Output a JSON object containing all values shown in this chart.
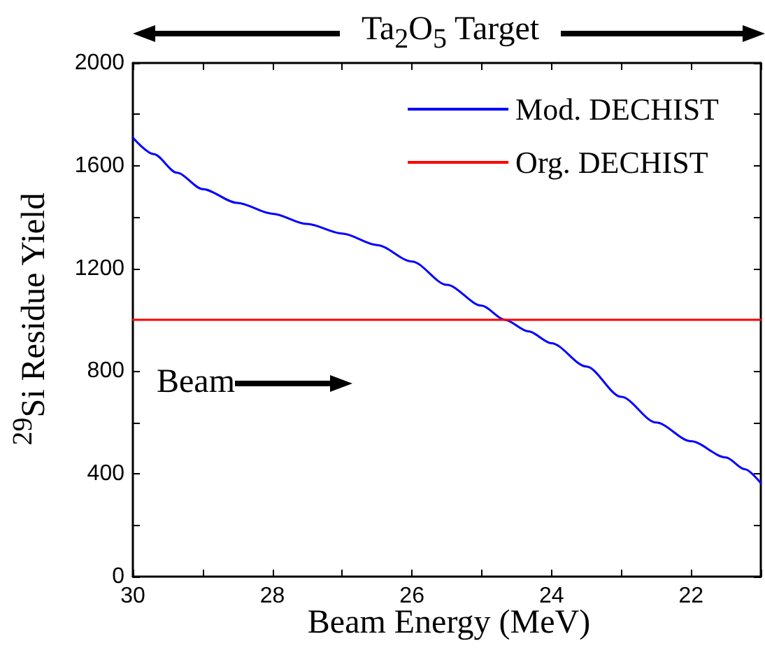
{
  "chart_data": {
    "type": "line",
    "title": "Ta$_{2}$O$_{5}$ Target",
    "xlabel": "Beam Energy (MeV)",
    "ylabel": "$^{29}$Si Residue Yield",
    "xlim": [
      30,
      21
    ],
    "ylim": [
      0,
      2000
    ],
    "xticks": [
      30,
      {
        "value": 29,
        "label": null
      },
      28,
      {
        "value": 27,
        "label": null
      },
      26,
      {
        "value": 25,
        "label": null
      },
      24,
      {
        "value": 23,
        "label": null
      },
      22,
      {
        "value": 21,
        "label": null
      }
    ],
    "yticks": [
      0,
      {
        "value": 200,
        "label": null
      },
      400,
      {
        "value": 600,
        "label": null
      },
      800,
      {
        "value": 1000,
        "label": null
      },
      1200,
      {
        "value": 1400,
        "label": null
      },
      1600,
      {
        "value": 1800,
        "label": null
      },
      2000
    ],
    "grid": false,
    "legend": "top right",
    "marker": "none",
    "line_style": "solid",
    "annotations": [
      "Beam"
    ],
    "series": [
      {
        "name": "Mod. DECHIST",
        "color": "#0000ff",
        "x": [
          30,
          29.7,
          29.37,
          29,
          28.5,
          28,
          27.5,
          27,
          26.5,
          26,
          25.5,
          25,
          24.67,
          24.33,
          24,
          23.5,
          23,
          22.5,
          22,
          21.5,
          21.23,
          21
        ],
        "values": [
          1709,
          1645,
          1573,
          1509,
          1455,
          1413,
          1373,
          1336,
          1291,
          1227,
          1136,
          1055,
          1000,
          955,
          909,
          818,
          700,
          600,
          527,
          464,
          418,
          364
        ]
      },
      {
        "name": "Org. DECHIST",
        "color": "#ff0000",
        "x": [
          30,
          21
        ],
        "values": [
          1000,
          1000
        ]
      }
    ]
  }
}
